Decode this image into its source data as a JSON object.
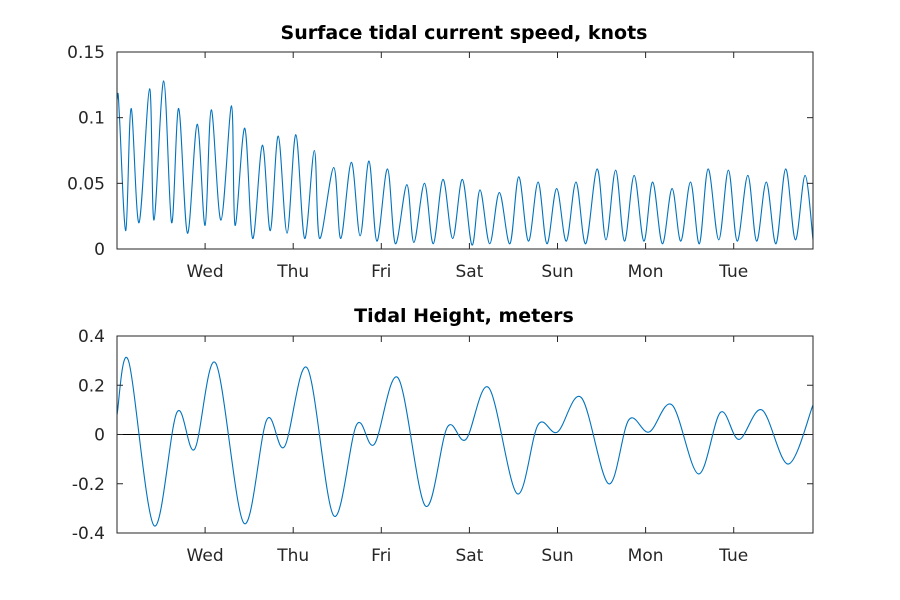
{
  "colors": {
    "series": "#0072bd",
    "axis": "#262626",
    "zero_line": "#000000",
    "background": "#ffffff"
  },
  "chart_data": [
    {
      "type": "line",
      "title": "Surface tidal current speed, knots",
      "xlabel": "",
      "ylabel": "",
      "xlim": [
        0.0,
        7.9
      ],
      "ylim": [
        0,
        0.15
      ],
      "yticks": [
        {
          "value": 0,
          "label": "0"
        },
        {
          "value": 0.05,
          "label": "0.05"
        },
        {
          "value": 0.1,
          "label": "0.1"
        },
        {
          "value": 0.15,
          "label": "0.15"
        }
      ],
      "xticks": [
        {
          "value": 1,
          "label": "Wed"
        },
        {
          "value": 2,
          "label": "Thu"
        },
        {
          "value": 3,
          "label": "Fri"
        },
        {
          "value": 4,
          "label": "Sat"
        },
        {
          "value": 5,
          "label": "Sun"
        },
        {
          "value": 6,
          "label": "Mon"
        },
        {
          "value": 7,
          "label": "Tue"
        }
      ],
      "grid": false,
      "series": [
        {
          "x": [
            0.0,
            0.013,
            0.03,
            0.1,
            0.16,
            0.25,
            0.37,
            0.42,
            0.53,
            0.62,
            0.7,
            0.8,
            0.91,
            1.0,
            1.07,
            1.18,
            1.3,
            1.34,
            1.45,
            1.54,
            1.65,
            1.74,
            1.83,
            1.93,
            2.03,
            2.13,
            2.24,
            2.3,
            2.46,
            2.54,
            2.66,
            2.76,
            2.86,
            2.95,
            3.07,
            3.16,
            3.29,
            3.37,
            3.49,
            3.59,
            3.7,
            3.81,
            3.92,
            4.03,
            4.12,
            4.23,
            4.34,
            4.46,
            4.56,
            4.67,
            4.78,
            4.88,
            4.99,
            5.1,
            5.21,
            5.32,
            5.45,
            5.55,
            5.66,
            5.76,
            5.87,
            5.98,
            6.08,
            6.19,
            6.3,
            6.4,
            6.51,
            6.61,
            6.71,
            6.83,
            6.94,
            7.04,
            7.16,
            7.26,
            7.37,
            7.48,
            7.59,
            7.7,
            7.81,
            7.9
          ],
          "y": [
            0.113,
            0.118,
            0.098,
            0.014,
            0.107,
            0.02,
            0.122,
            0.022,
            0.128,
            0.02,
            0.107,
            0.012,
            0.095,
            0.018,
            0.106,
            0.022,
            0.109,
            0.018,
            0.092,
            0.008,
            0.079,
            0.014,
            0.086,
            0.012,
            0.087,
            0.008,
            0.075,
            0.008,
            0.062,
            0.008,
            0.066,
            0.01,
            0.067,
            0.006,
            0.061,
            0.004,
            0.049,
            0.005,
            0.05,
            0.004,
            0.053,
            0.008,
            0.053,
            0.003,
            0.045,
            0.004,
            0.043,
            0.004,
            0.055,
            0.006,
            0.051,
            0.004,
            0.046,
            0.006,
            0.051,
            0.004,
            0.061,
            0.007,
            0.06,
            0.006,
            0.056,
            0.006,
            0.051,
            0.004,
            0.046,
            0.006,
            0.051,
            0.004,
            0.061,
            0.007,
            0.06,
            0.006,
            0.056,
            0.006,
            0.051,
            0.004,
            0.061,
            0.007,
            0.056,
            0.007
          ]
        }
      ]
    },
    {
      "type": "line",
      "title": "Tidal Height, meters",
      "xlabel": "",
      "ylabel": "",
      "xlim": [
        0.0,
        7.9
      ],
      "ylim": [
        -0.4,
        0.4
      ],
      "yticks": [
        {
          "value": -0.4,
          "label": "-0.4"
        },
        {
          "value": -0.2,
          "label": "-0.2"
        },
        {
          "value": 0,
          "label": "0"
        },
        {
          "value": 0.2,
          "label": "0.2"
        },
        {
          "value": 0.4,
          "label": "0.4"
        }
      ],
      "xticks": [
        {
          "value": 1,
          "label": "Wed"
        },
        {
          "value": 2,
          "label": "Thu"
        },
        {
          "value": 3,
          "label": "Fri"
        },
        {
          "value": 4,
          "label": "Sat"
        },
        {
          "value": 5,
          "label": "Sun"
        },
        {
          "value": 6,
          "label": "Mon"
        },
        {
          "value": 7,
          "label": "Tue"
        }
      ],
      "zero_line": true,
      "grid": false,
      "series": [
        {
          "x": [
            0.0,
            0.13,
            0.42,
            0.68,
            0.88,
            1.12,
            1.44,
            1.7,
            1.9,
            2.16,
            2.46,
            2.72,
            2.92,
            3.19,
            3.5,
            3.75,
            3.96,
            4.22,
            4.54,
            4.78,
            5.0,
            5.27,
            5.58,
            5.81,
            6.04,
            6.3,
            6.6,
            6.85,
            7.06,
            7.32,
            7.62,
            7.9
          ],
          "y": [
            0.08,
            0.3,
            -0.37,
            0.09,
            -0.06,
            0.29,
            -0.36,
            0.06,
            -0.05,
            0.27,
            -0.33,
            0.04,
            -0.04,
            0.23,
            -0.29,
            0.03,
            -0.02,
            0.19,
            -0.24,
            0.04,
            0.01,
            0.15,
            -0.2,
            0.06,
            0.01,
            0.12,
            -0.16,
            0.09,
            -0.02,
            0.1,
            -0.12,
            0.12
          ]
        }
      ]
    }
  ]
}
